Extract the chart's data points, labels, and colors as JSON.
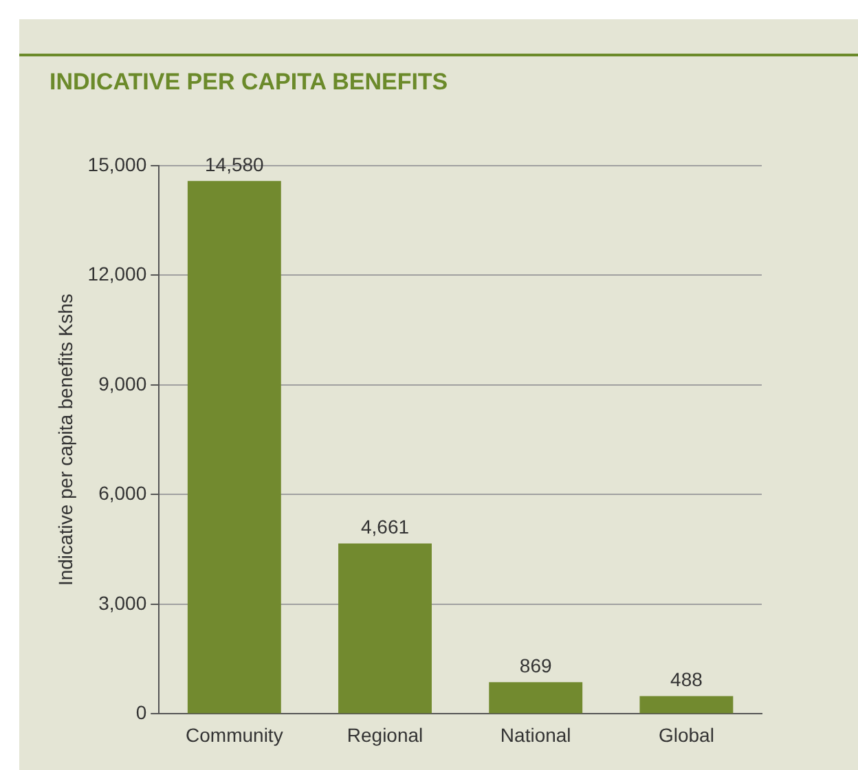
{
  "chart_data": {
    "type": "bar",
    "title": "INDICATIVE PER CAPITA BENEFITS",
    "ylabel": "Indicative per capita benefits Kshs",
    "categories": [
      "Community",
      "Regional",
      "National",
      "Global"
    ],
    "values": [
      14580,
      4661,
      869,
      488
    ],
    "value_labels": [
      "14,580",
      "4,661",
      "869",
      "488"
    ],
    "color": "#728a2f",
    "ylim": [
      0,
      15000
    ],
    "yticks": [
      0,
      {
        "value": 3000,
        "label": "3,000"
      },
      {
        "value": 6000,
        "label": "6,000"
      },
      {
        "value": 9000,
        "label": "9,000"
      },
      {
        "value": 12000,
        "label": "12,000"
      },
      {
        "value": 15000,
        "label": "15,000"
      }
    ],
    "grid": "y",
    "legend": false
  }
}
